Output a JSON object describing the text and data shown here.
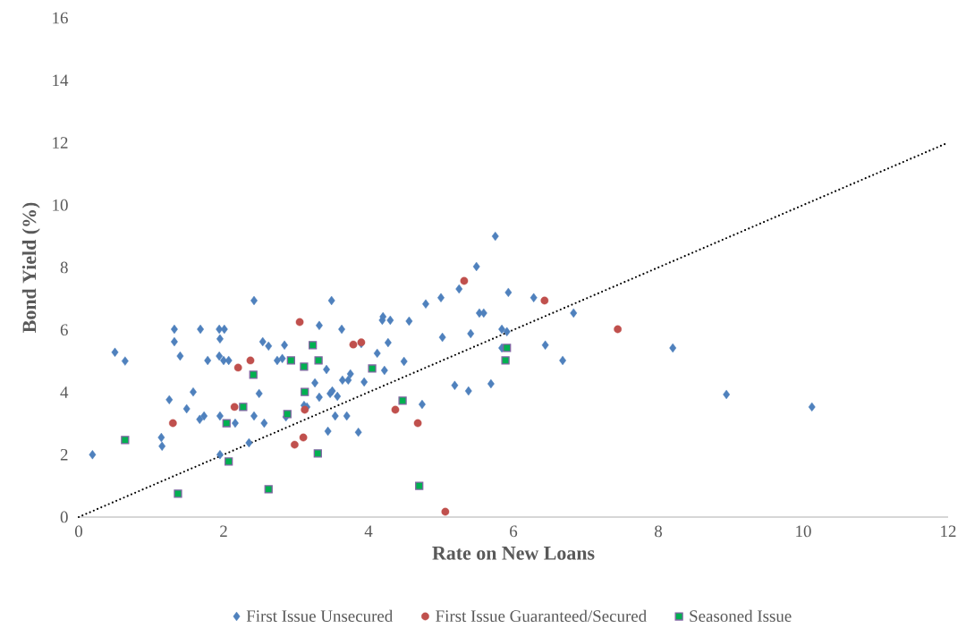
{
  "chart_data": {
    "type": "scatter",
    "xlabel": "Rate on New Loans",
    "ylabel": "Bond Yield (%)",
    "xlim": [
      0,
      12
    ],
    "ylim": [
      0,
      16
    ],
    "xticks": [
      0,
      2,
      4,
      6,
      8,
      10,
      12
    ],
    "yticks": [
      0,
      2,
      4,
      6,
      8,
      10,
      12,
      14,
      16
    ],
    "grid": false,
    "legend": "bottom",
    "series": [
      {
        "name": "First Issue Unsecured",
        "color": "#4f81bd",
        "marker": "diamond",
        "x": [
          0.19,
          0.5,
          0.64,
          1.14,
          1.15,
          1.25,
          1.32,
          1.32,
          1.4,
          1.49,
          1.58,
          1.67,
          1.73,
          1.68,
          1.78,
          1.94,
          1.95,
          1.94,
          2.01,
          2.0,
          1.95,
          1.95,
          2.16,
          2.07,
          2.42,
          2.42,
          2.49,
          2.56,
          2.54,
          2.62,
          2.35,
          2.84,
          2.74,
          2.81,
          2.86,
          3.11,
          3.15,
          3.32,
          3.26,
          3.32,
          3.42,
          3.44,
          3.47,
          3.49,
          3.5,
          3.57,
          3.54,
          3.63,
          3.64,
          3.7,
          3.72,
          3.75,
          3.86,
          3.9,
          3.94,
          4.12,
          4.19,
          4.2,
          4.3,
          4.27,
          4.22,
          4.56,
          4.49,
          4.74,
          4.79,
          5.0,
          5.02,
          5.19,
          5.25,
          5.41,
          5.38,
          5.49,
          5.53,
          5.59,
          5.69,
          5.75,
          5.84,
          5.84,
          5.91,
          5.93,
          6.28,
          6.44,
          6.68,
          6.83,
          8.2,
          8.94,
          10.12
        ],
        "values": [
          2.0,
          5.28,
          5.0,
          2.55,
          2.27,
          3.76,
          6.02,
          5.62,
          5.16,
          3.47,
          4.01,
          3.13,
          3.24,
          6.02,
          5.02,
          6.02,
          5.71,
          5.16,
          6.02,
          5.02,
          2.0,
          3.24,
          3.01,
          5.02,
          6.94,
          3.24,
          3.96,
          3.01,
          5.62,
          5.48,
          2.38,
          5.51,
          5.02,
          5.08,
          3.21,
          3.58,
          3.53,
          6.14,
          4.3,
          3.84,
          4.73,
          2.75,
          3.96,
          6.94,
          4.04,
          3.87,
          3.24,
          6.02,
          4.39,
          3.24,
          4.39,
          4.59,
          2.72,
          5.56,
          4.33,
          5.25,
          6.31,
          6.42,
          6.31,
          5.59,
          4.7,
          6.28,
          4.99,
          3.61,
          6.83,
          7.03,
          5.76,
          4.22,
          7.31,
          5.88,
          4.04,
          8.03,
          6.54,
          6.54,
          4.27,
          9.0,
          6.02,
          5.42,
          5.94,
          7.2,
          7.03,
          5.51,
          5.02,
          6.54,
          5.42,
          3.93,
          3.53
        ]
      },
      {
        "name": "First Issue Guaranteed/Secured",
        "color": "#c0504d",
        "marker": "circle",
        "x": [
          1.3,
          2.15,
          2.2,
          2.37,
          3.05,
          2.98,
          3.1,
          3.12,
          3.79,
          3.9,
          4.37,
          4.68,
          5.06,
          5.32,
          6.43,
          7.44
        ],
        "values": [
          3.01,
          3.53,
          4.79,
          5.02,
          6.25,
          2.32,
          2.55,
          3.44,
          5.53,
          5.6,
          3.44,
          3.01,
          0.17,
          7.57,
          6.94,
          6.02
        ]
      },
      {
        "name": "Seasoned Issue",
        "color": "#00b050",
        "marker": "square",
        "x": [
          0.64,
          1.37,
          2.04,
          2.07,
          2.27,
          2.41,
          2.62,
          2.88,
          2.93,
          3.11,
          3.12,
          3.23,
          3.31,
          3.3,
          4.05,
          4.47,
          4.7,
          5.91,
          5.89
        ],
        "values": [
          2.47,
          0.75,
          3.01,
          1.78,
          3.53,
          4.56,
          0.89,
          3.3,
          5.02,
          4.82,
          4.01,
          5.51,
          5.02,
          2.04,
          4.76,
          3.73,
          1.0,
          5.42,
          5.02
        ]
      },
      {
        "type": "line",
        "color": "#000000",
        "line_style": "dotted",
        "marker": "none",
        "x": [
          0,
          12
        ],
        "values": [
          0,
          12
        ]
      }
    ]
  }
}
